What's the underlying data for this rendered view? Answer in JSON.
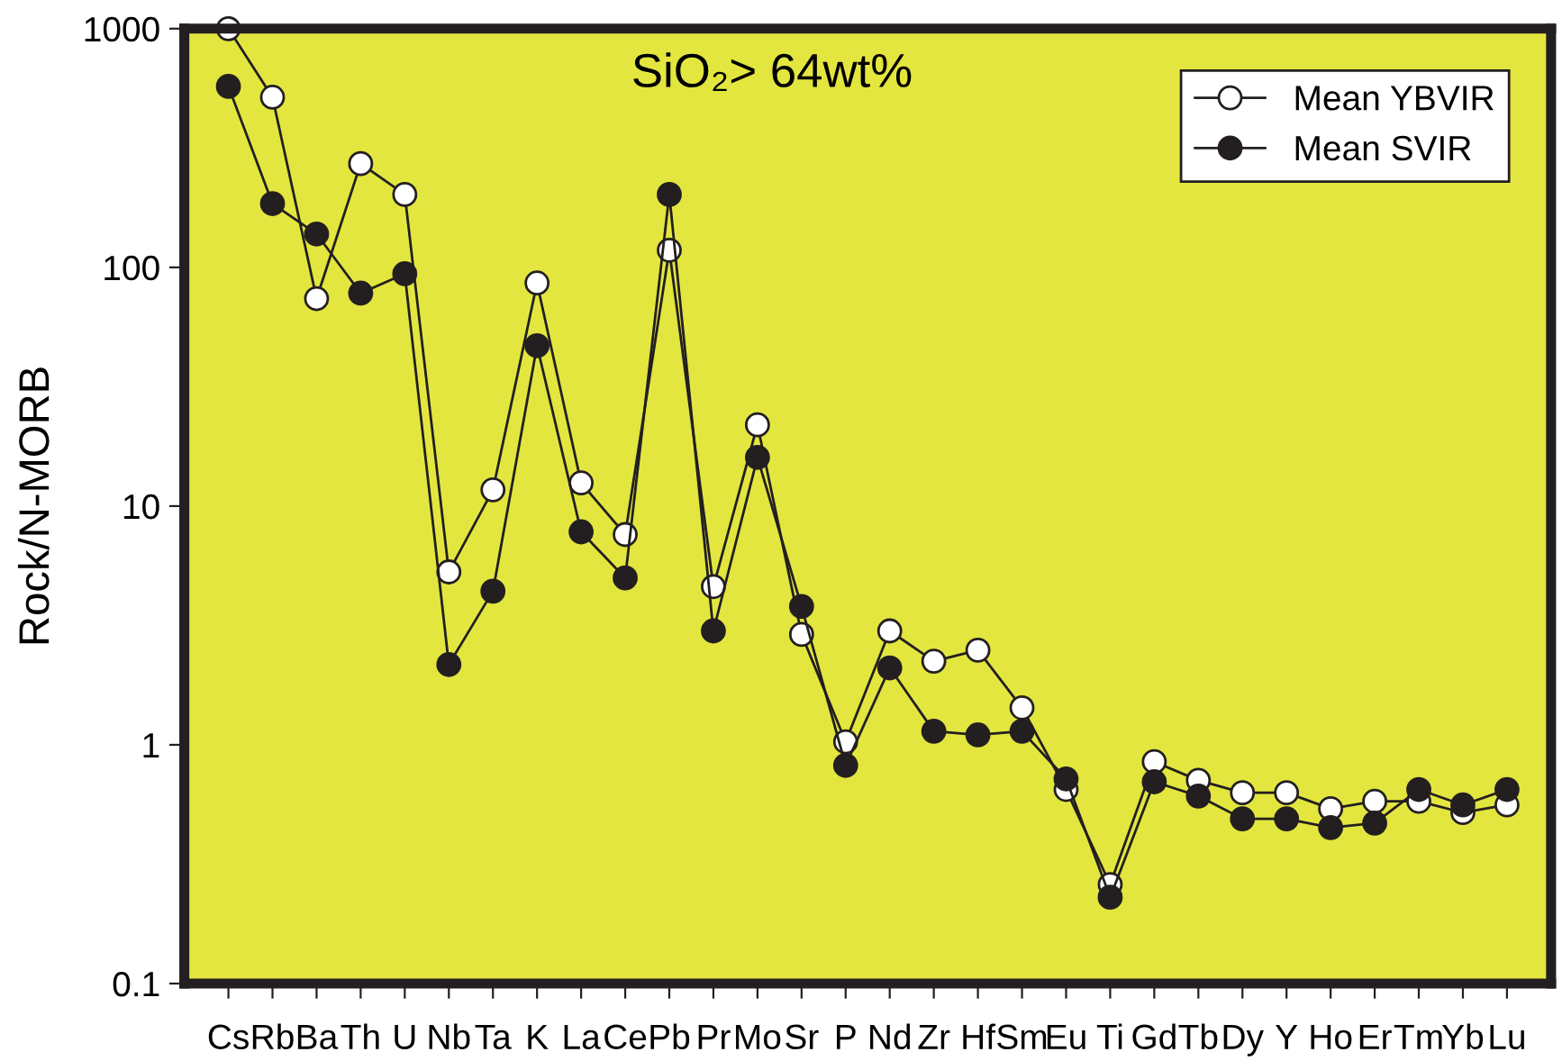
{
  "chart_data": {
    "type": "line",
    "ylabel": "Rock/N-MORB",
    "annotations": [
      "SiO₂> 64wt%"
    ],
    "categories": [
      "Cs",
      "Rb",
      "Ba",
      "Th",
      "U",
      "Nb",
      "Ta",
      "K",
      "La",
      "Ce",
      "Pb",
      "Pr",
      "Mo",
      "Sr",
      "P",
      "Nd",
      "Zr",
      "Hf",
      "Sm",
      "Eu",
      "Ti",
      "Gd",
      "Tb",
      "Dy",
      "Y",
      "Ho",
      "Er",
      "Tm",
      "Yb",
      "Lu"
    ],
    "series": [
      {
        "name": "Mean YBVIR",
        "color": "#ffffff",
        "values": [
          1000,
          516,
          74,
          272,
          202,
          5.3,
          11.7,
          86,
          12.5,
          7.6,
          118,
          4.6,
          21.9,
          2.9,
          1.03,
          3.0,
          2.24,
          2.49,
          1.43,
          0.65,
          0.26,
          0.85,
          0.71,
          0.63,
          0.63,
          0.54,
          0.58,
          0.58,
          0.52,
          0.56
        ]
      },
      {
        "name": "Mean SVIR",
        "color": "#231f20",
        "values": [
          573,
          185,
          138,
          78,
          94,
          2.17,
          4.4,
          47,
          7.8,
          5.0,
          202,
          3.0,
          16,
          3.8,
          0.82,
          2.1,
          1.14,
          1.1,
          1.14,
          0.72,
          0.23,
          0.7,
          0.61,
          0.49,
          0.49,
          0.45,
          0.47,
          0.65,
          0.56,
          0.65
        ]
      }
    ],
    "log": true,
    "ylim": [
      0.1,
      1000
    ],
    "yticks": [
      0.1,
      1,
      10,
      100,
      1000
    ],
    "legend": "top right",
    "marker": "circle",
    "line_style": "solid",
    "grid": false
  }
}
